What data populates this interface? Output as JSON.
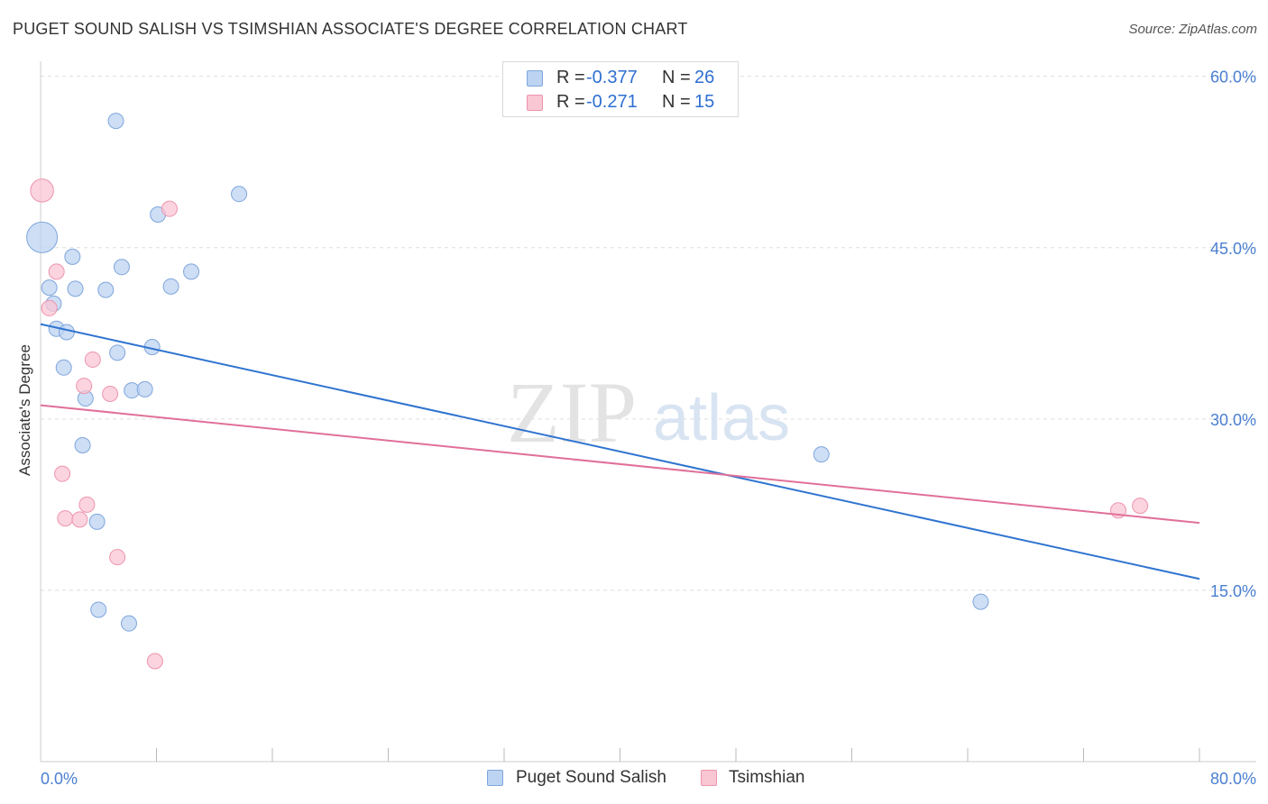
{
  "title": "PUGET SOUND SALISH VS TSIMSHIAN ASSOCIATE'S DEGREE CORRELATION CHART",
  "source": "Source: ZipAtlas.com",
  "watermark": {
    "zip": "ZIP",
    "atlas": "atlas"
  },
  "legend_top": {
    "rows": [
      {
        "r_label": "R =",
        "r_value": "-0.377",
        "n_label": "N =",
        "n_value": "26"
      },
      {
        "r_label": "R =",
        "r_value": "-0.271",
        "n_label": "N =",
        "n_value": "15"
      }
    ]
  },
  "legend_bottom": {
    "items": [
      "Puget Sound Salish",
      "Tsimshian"
    ]
  },
  "colors": {
    "blue_fill": "#bcd3f2",
    "blue_stroke": "#7fa6dc",
    "blue_line": "#2f74d0",
    "pink_fill": "#f9c6d4",
    "pink_stroke": "#ee94ad",
    "pink_line": "#e0709a",
    "tick_label": "#4a7fd0",
    "grid": "#dddddd"
  },
  "chart_data": {
    "type": "scatter",
    "title": "PUGET SOUND SALISH VS TSIMSHIAN ASSOCIATE'S DEGREE CORRELATION CHART",
    "xlabel": "",
    "ylabel": "Associate's Degree",
    "xlim": [
      0,
      80
    ],
    "ylim": [
      0,
      61
    ],
    "x_tick_labels": [
      "0.0%",
      "80.0%"
    ],
    "y_ticks": [
      15,
      30,
      45,
      60
    ],
    "y_tick_labels": [
      "15.0%",
      "30.0%",
      "45.0%",
      "60.0%"
    ],
    "series": [
      {
        "name": "Puget Sound Salish",
        "r": -0.377,
        "n": 26,
        "trend": {
          "x": [
            0,
            80
          ],
          "y": [
            38.3,
            16.0
          ]
        },
        "points": [
          {
            "x": 5.2,
            "y": 56.1,
            "s": 1
          },
          {
            "x": 13.7,
            "y": 49.7,
            "s": 1
          },
          {
            "x": 8.1,
            "y": 47.9,
            "s": 1
          },
          {
            "x": 0.1,
            "y": 45.9,
            "s": 2
          },
          {
            "x": 2.2,
            "y": 44.2,
            "s": 1
          },
          {
            "x": 5.6,
            "y": 43.3,
            "s": 1
          },
          {
            "x": 10.4,
            "y": 42.9,
            "s": 1
          },
          {
            "x": 0.6,
            "y": 41.5,
            "s": 1
          },
          {
            "x": 2.4,
            "y": 41.4,
            "s": 1
          },
          {
            "x": 4.5,
            "y": 41.3,
            "s": 1
          },
          {
            "x": 9.0,
            "y": 41.6,
            "s": 1
          },
          {
            "x": 0.9,
            "y": 40.1,
            "s": 1
          },
          {
            "x": 1.1,
            "y": 37.9,
            "s": 1
          },
          {
            "x": 1.8,
            "y": 37.6,
            "s": 1
          },
          {
            "x": 7.7,
            "y": 36.3,
            "s": 1
          },
          {
            "x": 5.3,
            "y": 35.8,
            "s": 1
          },
          {
            "x": 1.6,
            "y": 34.5,
            "s": 1
          },
          {
            "x": 6.3,
            "y": 32.5,
            "s": 1
          },
          {
            "x": 7.2,
            "y": 32.6,
            "s": 1
          },
          {
            "x": 3.1,
            "y": 31.8,
            "s": 1
          },
          {
            "x": 2.9,
            "y": 27.7,
            "s": 1
          },
          {
            "x": 53.9,
            "y": 26.9,
            "s": 1
          },
          {
            "x": 3.9,
            "y": 21.0,
            "s": 1
          },
          {
            "x": 4.0,
            "y": 13.3,
            "s": 1
          },
          {
            "x": 6.1,
            "y": 12.1,
            "s": 1
          },
          {
            "x": 64.9,
            "y": 14.0,
            "s": 1
          }
        ]
      },
      {
        "name": "Tsimshian",
        "r": -0.271,
        "n": 15,
        "trend": {
          "x": [
            0,
            80
          ],
          "y": [
            31.2,
            20.9
          ]
        },
        "points": [
          {
            "x": 0.1,
            "y": 50.0,
            "s": 1.5
          },
          {
            "x": 8.9,
            "y": 48.4,
            "s": 1
          },
          {
            "x": 1.1,
            "y": 42.9,
            "s": 1
          },
          {
            "x": 0.6,
            "y": 39.7,
            "s": 1
          },
          {
            "x": 3.6,
            "y": 35.2,
            "s": 1
          },
          {
            "x": 3.0,
            "y": 32.9,
            "s": 1
          },
          {
            "x": 4.8,
            "y": 32.2,
            "s": 1
          },
          {
            "x": 1.5,
            "y": 25.2,
            "s": 1
          },
          {
            "x": 3.2,
            "y": 22.5,
            "s": 1
          },
          {
            "x": 1.7,
            "y": 21.3,
            "s": 1
          },
          {
            "x": 2.7,
            "y": 21.2,
            "s": 1
          },
          {
            "x": 5.3,
            "y": 17.9,
            "s": 1
          },
          {
            "x": 74.4,
            "y": 22.0,
            "s": 1
          },
          {
            "x": 75.9,
            "y": 22.4,
            "s": 1
          },
          {
            "x": 7.9,
            "y": 8.8,
            "s": 1
          }
        ]
      }
    ]
  }
}
